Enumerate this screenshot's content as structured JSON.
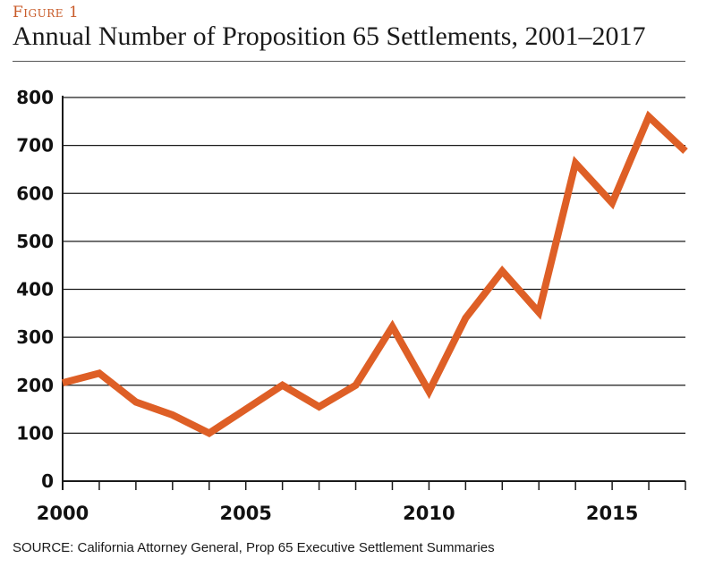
{
  "figure_label": "Figure 1",
  "title": "Annual Number of Proposition 65 Settlements, 2001–2017",
  "source": "SOURCE: California Attorney General, Prop 65 Executive Settlement Summaries",
  "colors": {
    "line": "#de5f26",
    "grid": "#1a1a1a",
    "figure_label": "#c85a28"
  },
  "chart_data": {
    "type": "line",
    "title": "Annual Number of Proposition 65 Settlements, 2001–2017",
    "xlabel": "",
    "ylabel": "",
    "xlim": [
      2000,
      2017
    ],
    "ylim": [
      0,
      800
    ],
    "y_ticks": [
      0,
      100,
      200,
      300,
      400,
      500,
      600,
      700,
      800
    ],
    "x_tick_labels": [
      2000,
      2005,
      2010,
      2015
    ],
    "x_minor_ticks": [
      2000,
      2001,
      2002,
      2003,
      2004,
      2005,
      2006,
      2007,
      2008,
      2009,
      2010,
      2011,
      2012,
      2013,
      2014,
      2015,
      2016,
      2017
    ],
    "grid": true,
    "series": [
      {
        "name": "Settlements",
        "x": [
          2000,
          2001,
          2002,
          2003,
          2004,
          2005,
          2006,
          2007,
          2008,
          2009,
          2010,
          2011,
          2012,
          2013,
          2014,
          2015,
          2016,
          2017
        ],
        "values": [
          205,
          225,
          165,
          138,
          100,
          150,
          200,
          155,
          200,
          322,
          187,
          340,
          438,
          352,
          663,
          580,
          760,
          688
        ]
      }
    ]
  }
}
